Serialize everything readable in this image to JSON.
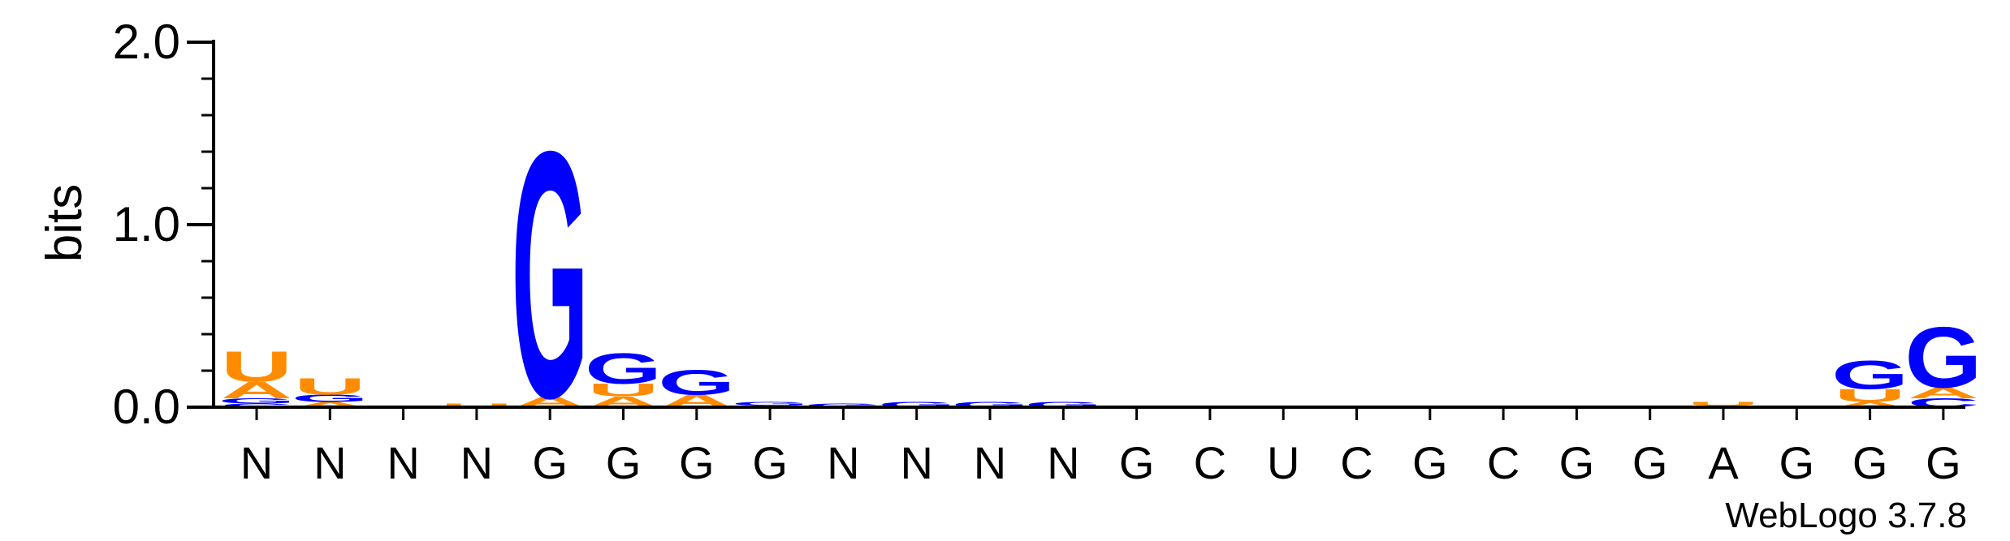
{
  "chart_data": {
    "type": "sequence-logo",
    "ylabel": "bits",
    "ylim": [
      0,
      2.0
    ],
    "yticks": [
      "0.0",
      "1.0",
      "2.0"
    ],
    "positions": [
      "N",
      "N",
      "N",
      "N",
      "G",
      "G",
      "G",
      "G",
      "N",
      "N",
      "N",
      "N",
      "G",
      "C",
      "U",
      "C",
      "G",
      "C",
      "G",
      "G",
      "A",
      "G",
      "G",
      "G"
    ],
    "letter_colors": {
      "A": "#ff8c00",
      "U": "#ff8c00",
      "G": "#0000ff",
      "C": "#0000ff"
    },
    "stacks": [
      [
        [
          "C",
          0.02
        ],
        [
          "G",
          0.03
        ],
        [
          "A",
          0.09
        ],
        [
          "U",
          0.17
        ]
      ],
      [
        [
          "A",
          0.03
        ],
        [
          "G",
          0.04
        ],
        [
          "U",
          0.09
        ]
      ],
      [
        [
          "A",
          0.01
        ]
      ],
      [
        [
          "U",
          0.02
        ]
      ],
      [
        [
          "A",
          0.06
        ],
        [
          "G",
          1.38
        ]
      ],
      [
        [
          "A",
          0.06
        ],
        [
          "U",
          0.07
        ],
        [
          "G",
          0.17
        ]
      ],
      [
        [
          "A",
          0.07
        ],
        [
          "G",
          0.14
        ]
      ],
      [
        [
          "U",
          0.01
        ],
        [
          "G",
          0.02
        ]
      ],
      [
        [
          "G",
          0.02
        ]
      ],
      [
        [
          "G",
          0.03
        ]
      ],
      [
        [
          "G",
          0.03
        ]
      ],
      [
        [
          "G",
          0.03
        ]
      ],
      [
        [
          "G",
          0.01
        ]
      ],
      [
        [
          "C",
          0.01
        ]
      ],
      [],
      [],
      [
        [
          "U",
          0.01
        ]
      ],
      [
        [
          "U",
          0.01
        ]
      ],
      [],
      [],
      [
        [
          "C",
          0.01
        ],
        [
          "U",
          0.02
        ]
      ],
      [],
      [
        [
          "A",
          0.03
        ],
        [
          "U",
          0.07
        ],
        [
          "G",
          0.16
        ]
      ],
      [
        [
          "C",
          0.05
        ],
        [
          "A",
          0.06
        ],
        [
          "G",
          0.34
        ]
      ]
    ]
  },
  "credit": "WebLogo 3.7.8"
}
